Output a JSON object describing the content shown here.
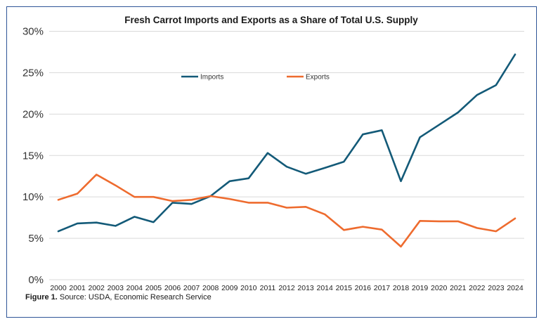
{
  "figure": {
    "caption_label": "Figure 1.",
    "caption_text": " Source: USDA, Economic Research Service",
    "frame_color": "#2f5597"
  },
  "chart_data": {
    "type": "line",
    "title": "Fresh Carrot Imports and Exports as a Share of Total U.S. Supply",
    "xlabel": "",
    "ylabel": "",
    "x": [
      "2000",
      "2001",
      "2002",
      "2003",
      "2004",
      "2005",
      "2006",
      "2007",
      "2008",
      "2009",
      "2010",
      "2011",
      "2012",
      "2013",
      "2014",
      "2015",
      "2016",
      "2017",
      "2018",
      "2019",
      "2020",
      "2021",
      "2022",
      "2023",
      "2024"
    ],
    "ylim": [
      0,
      30
    ],
    "yticks": [
      0,
      5,
      10,
      15,
      20,
      25,
      30
    ],
    "ytick_labels": [
      "0%",
      "5%",
      "10%",
      "15%",
      "20%",
      "25%",
      "30%"
    ],
    "grid": true,
    "legend_position": "top-center",
    "series": [
      {
        "name": "Imports",
        "color": "#135a78",
        "values": [
          5.85,
          6.8,
          6.9,
          6.5,
          7.6,
          6.95,
          9.3,
          9.15,
          10.1,
          11.9,
          12.25,
          15.3,
          13.65,
          12.8,
          13.5,
          14.25,
          17.55,
          18.05,
          11.9,
          17.2,
          18.7,
          20.2,
          22.3,
          23.5,
          27.2
        ]
      },
      {
        "name": "Exports",
        "color": "#ee6b2e",
        "values": [
          9.65,
          10.4,
          12.7,
          11.4,
          10.0,
          10.0,
          9.5,
          9.65,
          10.1,
          9.75,
          9.3,
          9.3,
          8.7,
          8.8,
          7.9,
          6.0,
          6.4,
          6.05,
          4.0,
          7.1,
          7.05,
          7.05,
          6.25,
          5.85,
          7.4
        ]
      }
    ]
  }
}
